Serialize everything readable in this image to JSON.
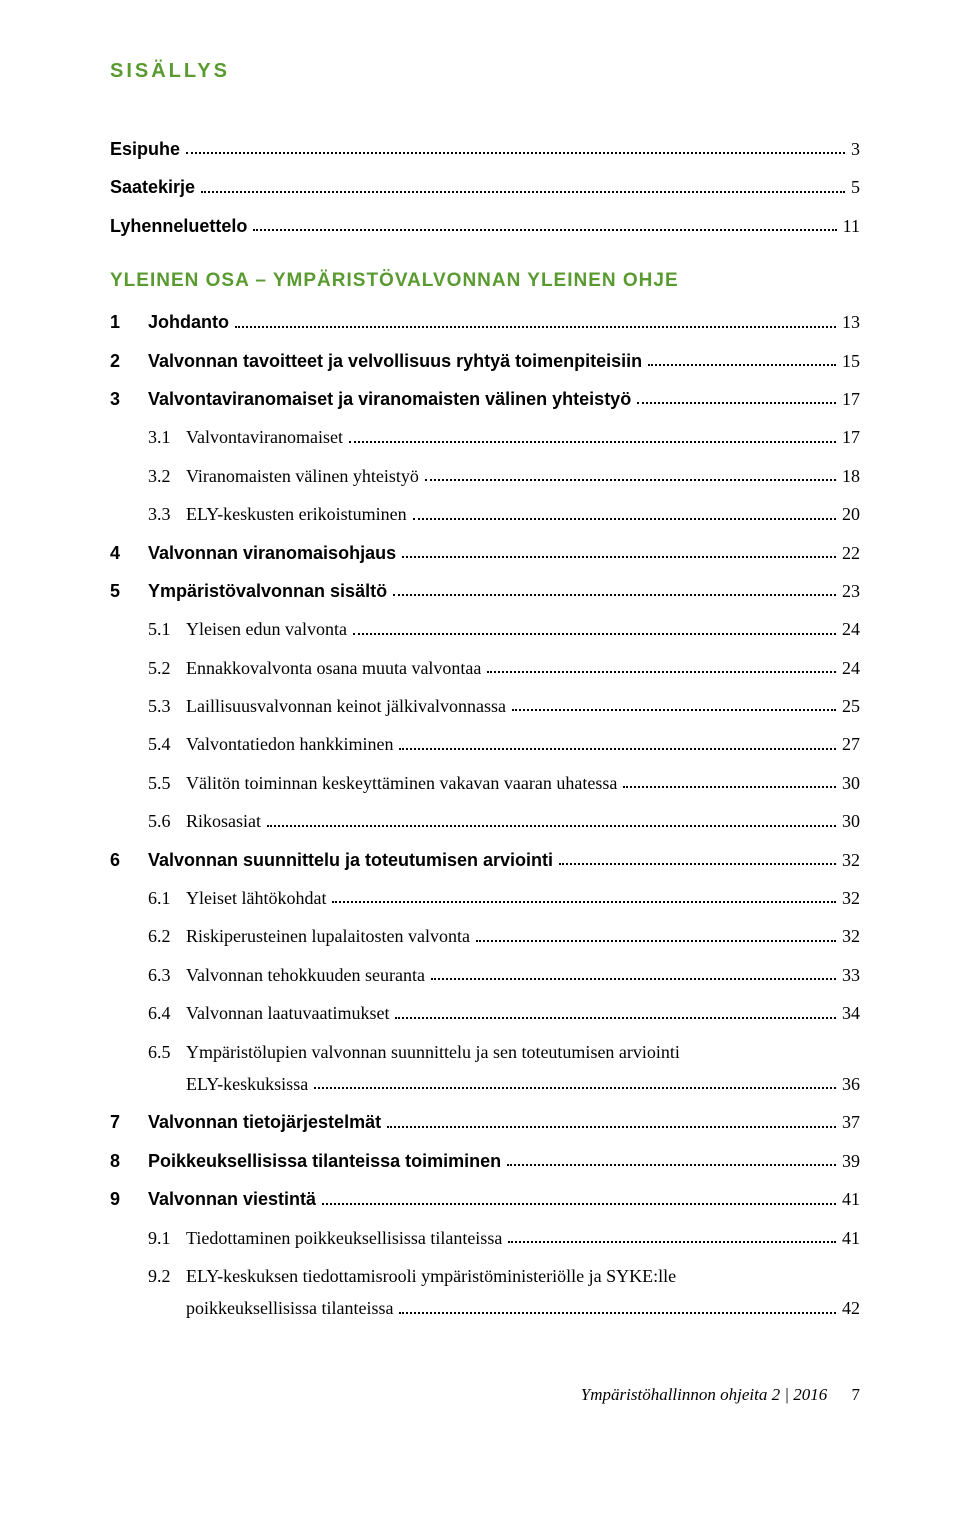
{
  "heading": "SISÄLLYS",
  "section_title": "YLEINEN OSA – YMPÄRISTÖVALVONNAN YLEINEN OHJE",
  "pre_entries": [
    {
      "num": "",
      "label": "Esipuhe",
      "page": "3",
      "bold": true
    },
    {
      "num": "",
      "label": "Saatekirje",
      "page": "5",
      "bold": true
    },
    {
      "num": "",
      "label": "Lyhenneluettelo",
      "page": "11",
      "bold": true
    }
  ],
  "entries": [
    {
      "num": "1",
      "label": "Johdanto",
      "page": "13",
      "bold": true,
      "sub": false
    },
    {
      "num": "2",
      "label": "Valvonnan tavoitteet ja velvollisuus ryhtyä toimenpiteisiin",
      "page": "15",
      "bold": true,
      "sub": false
    },
    {
      "num": "3",
      "label": "Valvontaviranomaiset ja viranomaisten välinen yhteistyö",
      "page": "17",
      "bold": true,
      "sub": false
    },
    {
      "num": "3.1",
      "label": "Valvontaviranomaiset",
      "page": "17",
      "bold": false,
      "sub": true
    },
    {
      "num": "3.2",
      "label": "Viranomaisten välinen yhteistyö",
      "page": "18",
      "bold": false,
      "sub": true
    },
    {
      "num": "3.3",
      "label": "ELY-keskusten erikoistuminen",
      "page": "20",
      "bold": false,
      "sub": true
    },
    {
      "num": "4",
      "label": "Valvonnan viranomaisohjaus",
      "page": "22",
      "bold": true,
      "sub": false
    },
    {
      "num": "5",
      "label": "Ympäristövalvonnan sisältö",
      "page": "23",
      "bold": true,
      "sub": false
    },
    {
      "num": "5.1",
      "label": "Yleisen edun valvonta",
      "page": "24",
      "bold": false,
      "sub": true
    },
    {
      "num": "5.2",
      "label": "Ennakkovalvonta osana muuta valvontaa",
      "page": "24",
      "bold": false,
      "sub": true
    },
    {
      "num": "5.3",
      "label": "Laillisuusvalvonnan keinot jälkivalvonnassa",
      "page": "25",
      "bold": false,
      "sub": true
    },
    {
      "num": "5.4",
      "label": "Valvontatiedon hankkiminen",
      "page": "27",
      "bold": false,
      "sub": true
    },
    {
      "num": "5.5",
      "label": "Välitön toiminnan keskeyttäminen vakavan vaaran uhatessa",
      "page": "30",
      "bold": false,
      "sub": true
    },
    {
      "num": "5.6",
      "label": "Rikosasiat",
      "page": "30",
      "bold": false,
      "sub": true
    },
    {
      "num": "6",
      "label": "Valvonnan suunnittelu ja toteutumisen arviointi",
      "page": "32",
      "bold": true,
      "sub": false
    },
    {
      "num": "6.1",
      "label": "Yleiset lähtökohdat",
      "page": "32",
      "bold": false,
      "sub": true
    },
    {
      "num": "6.2",
      "label": "Riskiperusteinen lupalaitosten valvonta",
      "page": "32",
      "bold": false,
      "sub": true
    },
    {
      "num": "6.3",
      "label": "Valvonnan tehokkuuden seuranta",
      "page": "33",
      "bold": false,
      "sub": true
    },
    {
      "num": "6.4",
      "label": "Valvonnan laatuvaatimukset",
      "page": "34",
      "bold": false,
      "sub": true
    },
    {
      "num": "6.5",
      "label": "Ympäristölupien valvonnan suunnittelu ja sen toteutumisen arviointi",
      "label2": "ELY-keskuksissa",
      "page": "36",
      "bold": false,
      "sub": true,
      "multiline": true
    },
    {
      "num": "7",
      "label": "Valvonnan tietojärjestelmät",
      "page": "37",
      "bold": true,
      "sub": false
    },
    {
      "num": "8",
      "label": "Poikkeuksellisissa tilanteissa toimiminen",
      "page": "39",
      "bold": true,
      "sub": false
    },
    {
      "num": "9",
      "label": "Valvonnan viestintä",
      "page": "41",
      "bold": true,
      "sub": false
    },
    {
      "num": "9.1",
      "label": "Tiedottaminen poikkeuksellisissa tilanteissa",
      "page": "41",
      "bold": false,
      "sub": true
    },
    {
      "num": "9.2",
      "label": "ELY-keskuksen tiedottamisrooli ympäristöministeriölle ja SYKE:lle",
      "label2": "poikkeuksellisissa tilanteissa",
      "page": "42",
      "bold": false,
      "sub": true,
      "multiline": true
    }
  ],
  "footer": {
    "text": "Ympäristöhallinnon ohjeita  2 | 2016",
    "page": "7"
  },
  "colors": {
    "accent": "#599a31",
    "text": "#000000",
    "bg": "#ffffff"
  }
}
